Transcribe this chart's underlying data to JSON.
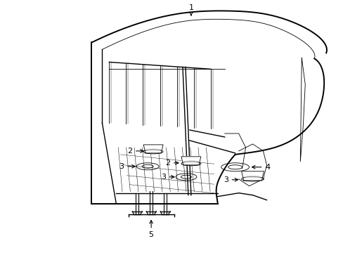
{
  "background_color": "#ffffff",
  "figsize": [
    4.89,
    3.6
  ],
  "dpi": 100,
  "line_color": "#000000",
  "lw_main": 1.0,
  "lw_thin": 0.6,
  "lw_thick": 1.4
}
